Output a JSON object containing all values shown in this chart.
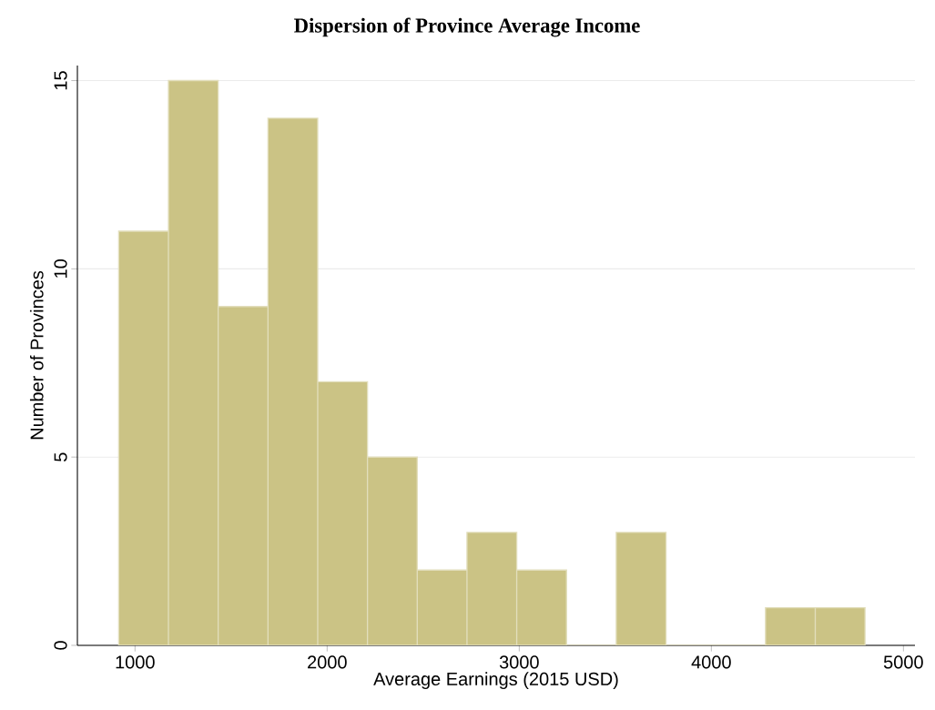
{
  "chart_data": {
    "type": "histogram",
    "title": "Dispersion of Province Average Income",
    "xlabel": "Average Earnings (2015 USD)",
    "ylabel": "Number of Provinces",
    "bins": [
      915,
      1174,
      1433,
      1692,
      1951,
      2210,
      2469,
      2728,
      2987,
      3246,
      3505,
      3764,
      4023,
      4282,
      4541,
      4800
    ],
    "values": [
      11,
      15,
      9,
      14,
      7,
      5,
      2,
      3,
      2,
      0,
      3,
      0,
      0,
      1,
      1
    ],
    "color": "#cbc385",
    "xlim": [
      700,
      5060
    ],
    "ylim": [
      0,
      15.4
    ],
    "xticks": [
      1000,
      2000,
      3000,
      4000,
      5000
    ],
    "yticks": [
      0,
      5,
      10,
      15
    ],
    "grid": "y"
  }
}
